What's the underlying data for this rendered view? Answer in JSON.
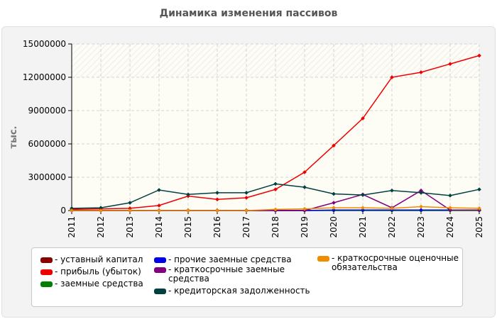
{
  "title": "Динамика изменения пассивов",
  "chart_data": {
    "type": "line",
    "ylabel": "тыс.",
    "x": [
      "2011",
      "2012",
      "2013",
      "2014",
      "2015",
      "2016",
      "2017",
      "2018",
      "2019",
      "2020",
      "2021",
      "2022",
      "2023",
      "2024",
      "2025"
    ],
    "ylim": [
      0,
      15000000
    ],
    "yticks": [
      "0",
      "3000000",
      "6000000",
      "9000000",
      "12000000",
      "15000000"
    ],
    "grid": true,
    "legend_position": "bottom",
    "series": [
      {
        "name": "уставный капитал",
        "color": "#8b0000",
        "values": [
          10000,
          10000,
          10000,
          10000,
          10000,
          10000,
          10000,
          10000,
          10000,
          10000,
          10000,
          10000,
          10000,
          10000,
          10000
        ]
      },
      {
        "name": "прибыль (убыток)",
        "color": "#ee0000",
        "values": [
          100000,
          150000,
          200000,
          450000,
          1300000,
          1000000,
          1150000,
          1900000,
          3450000,
          5850000,
          8300000,
          12000000,
          12450000,
          13200000,
          13950000
        ]
      },
      {
        "name": "заемные средства",
        "color": "#008000",
        "values": [
          0,
          0,
          0,
          0,
          0,
          0,
          0,
          0,
          0,
          0,
          0,
          0,
          0,
          0,
          0
        ]
      },
      {
        "name": "прочие заемные средства",
        "color": "#0000ee",
        "values": [
          0,
          0,
          0,
          0,
          0,
          0,
          0,
          0,
          0,
          50000,
          50000,
          50000,
          50000,
          50000,
          50000
        ]
      },
      {
        "name": "краткосрочные заемные средства",
        "color": "#800080",
        "values": [
          0,
          0,
          0,
          0,
          0,
          0,
          0,
          0,
          0,
          700000,
          1450000,
          250000,
          1800000,
          50000,
          50000
        ]
      },
      {
        "name": "кредиторская задолженность",
        "color": "#004040",
        "values": [
          200000,
          250000,
          700000,
          1850000,
          1450000,
          1600000,
          1600000,
          2400000,
          2100000,
          1500000,
          1400000,
          1800000,
          1600000,
          1350000,
          1900000
        ]
      },
      {
        "name": "краткосрочные оценочные обязательства",
        "color": "#f08c00",
        "values": [
          0,
          0,
          0,
          0,
          0,
          0,
          0,
          100000,
          150000,
          250000,
          250000,
          200000,
          350000,
          250000,
          200000
        ]
      }
    ]
  },
  "legend": {
    "items": [
      {
        "label": "- уставный капитал",
        "color": "#8b0000"
      },
      {
        "label": "- прибыль (убыток)",
        "color": "#ee0000"
      },
      {
        "label": "- заемные средства",
        "color": "#008000"
      },
      {
        "label": "- прочие заемные средства",
        "color": "#0000ee"
      },
      {
        "label": "- краткосрочные заемные средства",
        "color": "#800080"
      },
      {
        "label": "- кредиторская задолженность",
        "color": "#004040"
      },
      {
        "label": "- краткосрочные оценочные обязательства",
        "color": "#f08c00"
      }
    ]
  }
}
